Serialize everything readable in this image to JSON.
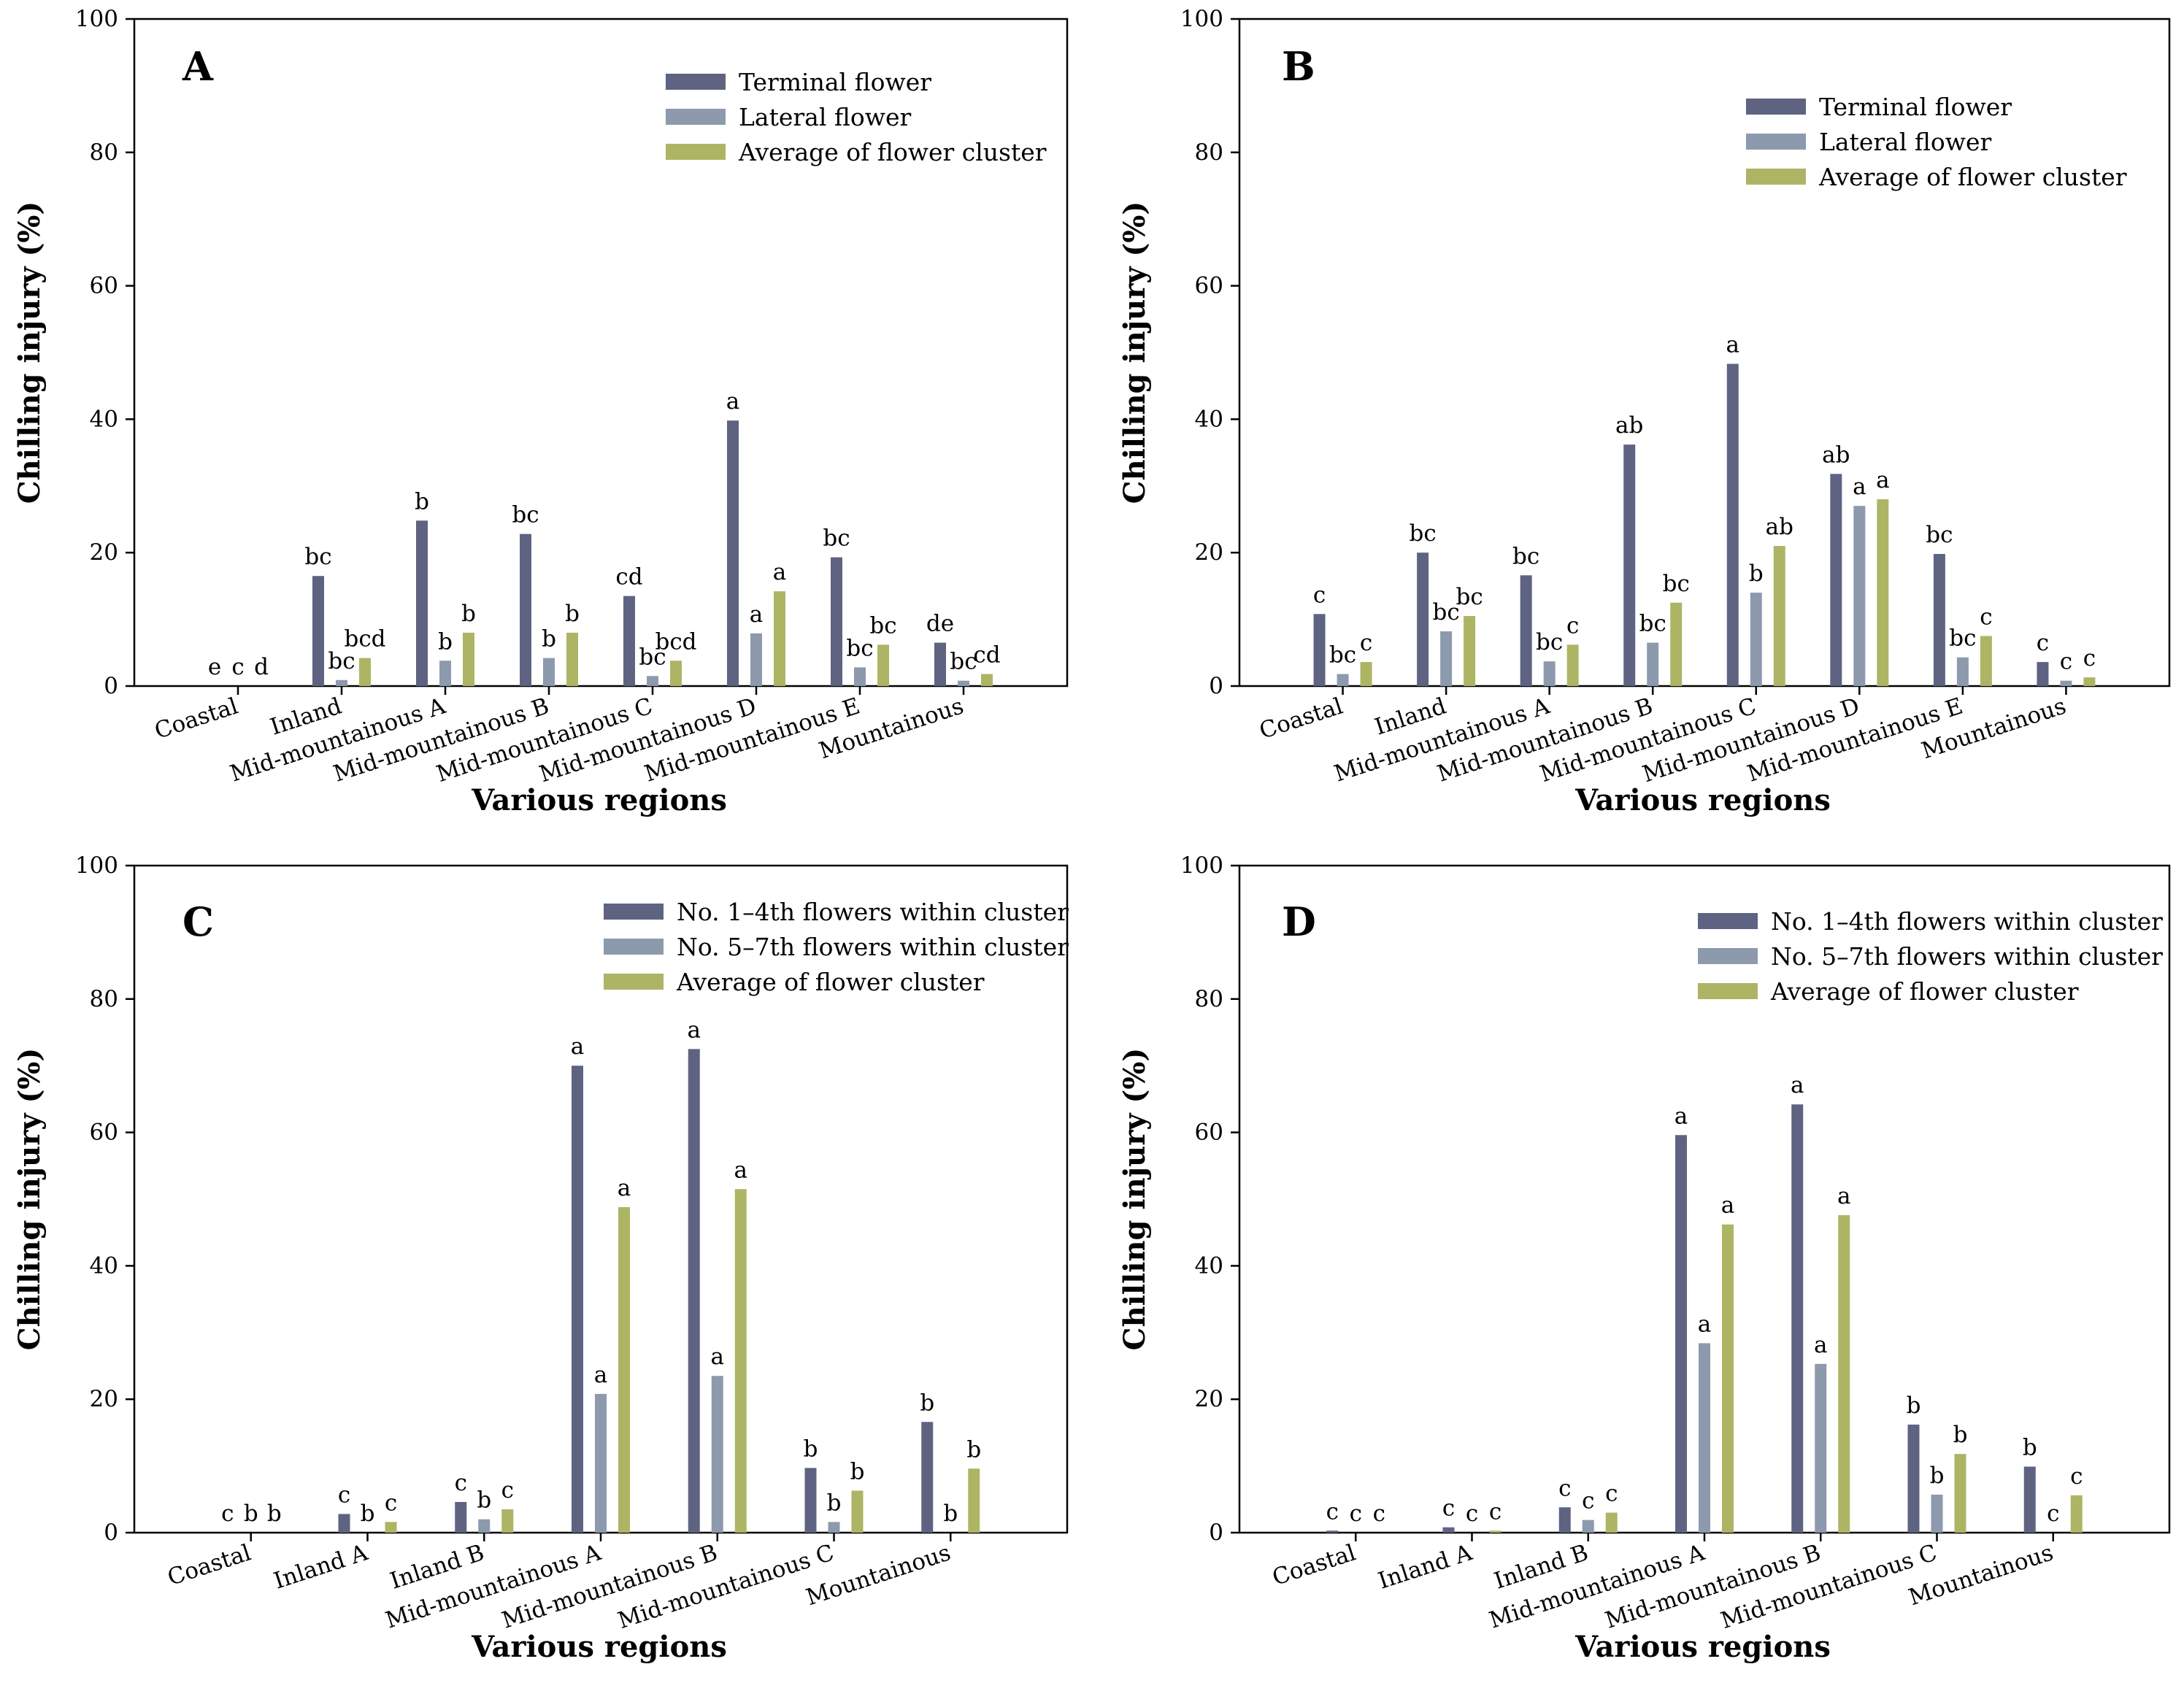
{
  "chart_data": [
    {
      "type": "bar",
      "panel_label": "A",
      "ylabel": "Chilling injury (%)",
      "xlabel": "Various regions",
      "ylim": [
        0,
        100
      ],
      "yticks": [
        "0",
        "20",
        "40",
        "60",
        "80",
        "100"
      ],
      "categories": [
        "Coastal",
        "Inland",
        "Mid-mountainous A",
        "Mid-mountainous B",
        "Mid-mountainous C",
        "Mid-mountainous D",
        "Mid-mountainous E",
        "Mountainous"
      ],
      "series": [
        {
          "name": "Terminal flower",
          "color": "#5e6382",
          "values": [
            0,
            16.5,
            24.8,
            22.8,
            13.5,
            39.8,
            19.3,
            6.5
          ],
          "letters": [
            "e",
            "bc",
            "b",
            "bc",
            "cd",
            "a",
            "bc",
            "de"
          ]
        },
        {
          "name": "Lateral flower",
          "color": "#8d9aad",
          "values": [
            0,
            0.9,
            3.8,
            4.2,
            1.5,
            7.9,
            2.8,
            0.8
          ],
          "letters": [
            "c",
            "bc",
            "b",
            "b",
            "bc",
            "a",
            "bc",
            "bc"
          ]
        },
        {
          "name": "Average of flower cluster",
          "color": "#adb565",
          "values": [
            0,
            4.2,
            8.0,
            8.0,
            3.8,
            14.2,
            6.2,
            1.8
          ],
          "letters": [
            "d",
            "bcd",
            "b",
            "b",
            "bcd",
            "a",
            "bc",
            "cd"
          ]
        }
      ],
      "legend_position": "top-right"
    },
    {
      "type": "bar",
      "panel_label": "B",
      "ylabel": "Chilling injury (%)",
      "xlabel": "Various regions",
      "ylim": [
        0,
        100
      ],
      "yticks": [
        "0",
        "20",
        "40",
        "60",
        "80",
        "100"
      ],
      "categories": [
        "Coastal",
        "Inland",
        "Mid-mountainous A",
        "Mid-mountainous B",
        "Mid-mountainous C",
        "Mid-mountainous D",
        "Mid-mountainous E",
        "Mountainous"
      ],
      "series": [
        {
          "name": "Terminal flower",
          "color": "#5e6382",
          "values": [
            10.8,
            20.0,
            16.6,
            36.2,
            48.3,
            31.8,
            19.8,
            3.6
          ],
          "letters": [
            "c",
            "bc",
            "bc",
            "ab",
            "a",
            "ab",
            "bc",
            "c"
          ]
        },
        {
          "name": "Lateral flower",
          "color": "#8d9aad",
          "values": [
            1.8,
            8.2,
            3.7,
            6.5,
            14.0,
            27.0,
            4.3,
            0.8
          ],
          "letters": [
            "bc",
            "bc",
            "bc",
            "bc",
            "b",
            "a",
            "bc",
            "c"
          ]
        },
        {
          "name": "Average of flower cluster",
          "color": "#adb565",
          "values": [
            3.6,
            10.5,
            6.2,
            12.5,
            21.0,
            28.0,
            7.5,
            1.3
          ],
          "letters": [
            "c",
            "bc",
            "c",
            "bc",
            "ab",
            "a",
            "c",
            "c"
          ]
        }
      ],
      "legend_position": "top-right"
    },
    {
      "type": "bar",
      "panel_label": "C",
      "ylabel": "Chilling injury (%)",
      "xlabel": "Various regions",
      "ylim": [
        0,
        100
      ],
      "yticks": [
        "0",
        "20",
        "40",
        "60",
        "80",
        "100"
      ],
      "categories": [
        "Coastal",
        "Inland A",
        "Inland B",
        "Mid-mountainous A",
        "Mid-mountainous B",
        "Mid-mountainous C",
        "Mountainous"
      ],
      "series": [
        {
          "name": "No. 1–4th flowers within cluster",
          "color": "#5e6382",
          "values": [
            0,
            2.8,
            4.6,
            70.0,
            72.5,
            9.7,
            16.6
          ],
          "letters": [
            "c",
            "c",
            "c",
            "a",
            "a",
            "b",
            "b"
          ]
        },
        {
          "name": "No. 5–7th flowers within cluster",
          "color": "#8d9aad",
          "values": [
            0,
            0,
            2.0,
            20.8,
            23.5,
            1.6,
            0
          ],
          "letters": [
            "b",
            "b",
            "b",
            "a",
            "a",
            "b",
            "b"
          ]
        },
        {
          "name": "Average of flower cluster",
          "color": "#adb565",
          "values": [
            0,
            1.6,
            3.5,
            48.8,
            51.5,
            6.3,
            9.6
          ],
          "letters": [
            "b",
            "c",
            "c",
            "a",
            "a",
            "b",
            "b"
          ]
        }
      ],
      "legend_position": "top-right"
    },
    {
      "type": "bar",
      "panel_label": "D",
      "ylabel": "Chilling injury (%)",
      "xlabel": "Various regions",
      "ylim": [
        0,
        100
      ],
      "yticks": [
        "0",
        "20",
        "40",
        "60",
        "80",
        "100"
      ],
      "categories": [
        "Coastal",
        "Inland A",
        "Inland B",
        "Mid-mountainous A",
        "Mid-mountainous B",
        "Mid-mountainous C",
        "Mountainous"
      ],
      "series": [
        {
          "name": "No. 1–4th flowers within cluster",
          "color": "#5e6382",
          "values": [
            0.3,
            0.8,
            3.8,
            59.6,
            64.2,
            16.2,
            9.9
          ],
          "letters": [
            "c",
            "c",
            "c",
            "a",
            "a",
            "b",
            "b"
          ]
        },
        {
          "name": "No. 5–7th flowers within cluster",
          "color": "#8d9aad",
          "values": [
            0,
            0,
            1.9,
            28.4,
            25.3,
            5.7,
            0
          ],
          "letters": [
            "c",
            "c",
            "c",
            "a",
            "a",
            "b",
            "c"
          ]
        },
        {
          "name": "Average of flower cluster",
          "color": "#adb565",
          "values": [
            0,
            0.3,
            3.0,
            46.2,
            47.6,
            11.8,
            5.6
          ],
          "letters": [
            "c",
            "c",
            "c",
            "a",
            "a",
            "b",
            "c"
          ]
        }
      ],
      "legend_position": "top-right"
    }
  ]
}
